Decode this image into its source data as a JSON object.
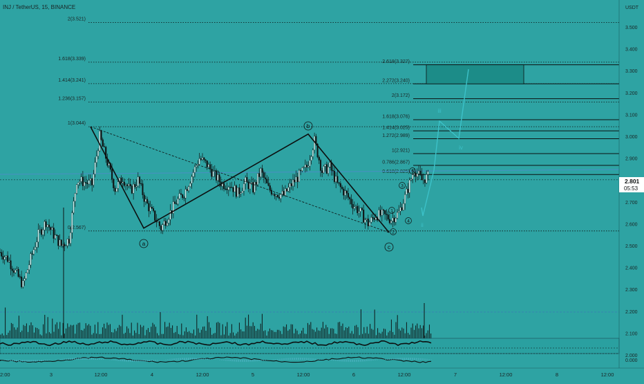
{
  "header": {
    "symbol_title": "INJ / TetherUS, 15, BINANCE",
    "currency": "USDT"
  },
  "colors": {
    "background": "#2ea3a3",
    "candle": "#0f1414",
    "wave_line": "#0c1010",
    "projection": "#3cc1c8",
    "target_box": "#1c8c88",
    "label_text": "#1a2424",
    "price_tag_bg": "#ffffff"
  },
  "current_price": {
    "value": "2.801",
    "countdown": "05:53"
  },
  "chart_data": {
    "type": "candlestick",
    "title": "INJ / TetherUS, 15, BINANCE",
    "y_unit": "USDT",
    "ylim": [
      1.95,
      3.6
    ],
    "y_ticks": [
      "3.500",
      "3.400",
      "3.300",
      "3.200",
      "3.100",
      "3.000",
      "2.900",
      "2.800",
      "2.700",
      "2.600",
      "2.500",
      "2.400",
      "2.300",
      "2.200",
      "2.100",
      "2.000"
    ],
    "x_ticks": [
      "2:00",
      "3",
      "12:00",
      "4",
      "12:00",
      "5",
      "12:00",
      "6",
      "12:00",
      "7",
      "12:00",
      "8",
      "12:00"
    ],
    "price_path": [
      [
        0,
        2.47
      ],
      [
        1,
        2.44
      ],
      [
        2,
        2.38
      ],
      [
        3,
        2.32
      ],
      [
        4,
        2.44
      ],
      [
        5,
        2.55
      ],
      [
        6,
        2.61
      ],
      [
        7,
        2.55
      ],
      [
        8,
        2.5
      ],
      [
        9,
        2.53
      ],
      [
        10,
        2.8
      ],
      [
        11,
        2.79
      ],
      [
        12,
        2.78
      ],
      [
        13,
        3.0
      ],
      [
        14,
        2.88
      ],
      [
        15,
        2.76
      ],
      [
        16,
        2.81
      ],
      [
        17,
        2.75
      ],
      [
        18,
        2.8
      ],
      [
        19,
        2.7
      ],
      [
        20,
        2.64
      ],
      [
        21,
        2.58
      ],
      [
        22,
        2.64
      ],
      [
        23,
        2.7
      ],
      [
        24,
        2.74
      ],
      [
        25,
        2.82
      ],
      [
        26,
        2.9
      ],
      [
        27,
        2.87
      ],
      [
        28,
        2.82
      ],
      [
        29,
        2.78
      ],
      [
        30,
        2.78
      ],
      [
        31,
        2.74
      ],
      [
        32,
        2.79
      ],
      [
        33,
        2.76
      ],
      [
        34,
        2.84
      ],
      [
        35,
        2.76
      ],
      [
        36,
        2.74
      ],
      [
        37,
        2.73
      ],
      [
        38,
        2.78
      ],
      [
        39,
        2.82
      ],
      [
        40,
        2.86
      ],
      [
        41,
        2.98
      ],
      [
        42,
        2.84
      ],
      [
        43,
        2.86
      ],
      [
        44,
        2.78
      ],
      [
        45,
        2.74
      ],
      [
        46,
        2.69
      ],
      [
        47,
        2.65
      ],
      [
        48,
        2.6
      ],
      [
        49,
        2.64
      ],
      [
        50,
        2.64
      ],
      [
        51,
        2.62
      ],
      [
        52,
        2.65
      ],
      [
        53,
        2.74
      ],
      [
        54,
        2.85
      ],
      [
        55,
        2.8
      ],
      [
        56,
        2.82
      ]
    ],
    "fib_levels": [
      {
        "label": "2(3.521)",
        "value": 3.521
      },
      {
        "label": "1.618(3.339)",
        "value": 3.339
      },
      {
        "label": "1.414(3.241)",
        "value": 3.241
      },
      {
        "label": "1.236(3.157)",
        "value": 3.157
      },
      {
        "label": "1(3.044)",
        "value": 3.044
      },
      {
        "label": "0(2.567)",
        "value": 2.567
      }
    ],
    "ext_levels": [
      {
        "label": "2.618(3.327)",
        "value": 3.327
      },
      {
        "label": "2.272(3.240)",
        "value": 3.24
      },
      {
        "label": "2(3.172)",
        "value": 3.172
      },
      {
        "label": "1.618(3.076)",
        "value": 3.076
      },
      {
        "label": "1.414(3.025)",
        "value": 3.025
      },
      {
        "label": "1.272(2.989)",
        "value": 2.989
      },
      {
        "label": "1(2.921)",
        "value": 2.921
      },
      {
        "label": "0.786(2.867)",
        "value": 2.867
      },
      {
        "label": "0.618(2.825)",
        "value": 2.825
      }
    ],
    "wave_abc": [
      {
        "label": "",
        "price": 3.044
      },
      {
        "label": "a",
        "price": 2.58
      },
      {
        "label": "b",
        "price": 3.01
      },
      {
        "label": "c",
        "price": 2.56
      }
    ],
    "impulse_labels": [
      "1",
      "2",
      "3",
      "4",
      "5"
    ],
    "projection_labels": [
      "ii",
      "iii",
      "iv"
    ],
    "target_zone": {
      "from": 3.24,
      "to": 3.327
    }
  }
}
